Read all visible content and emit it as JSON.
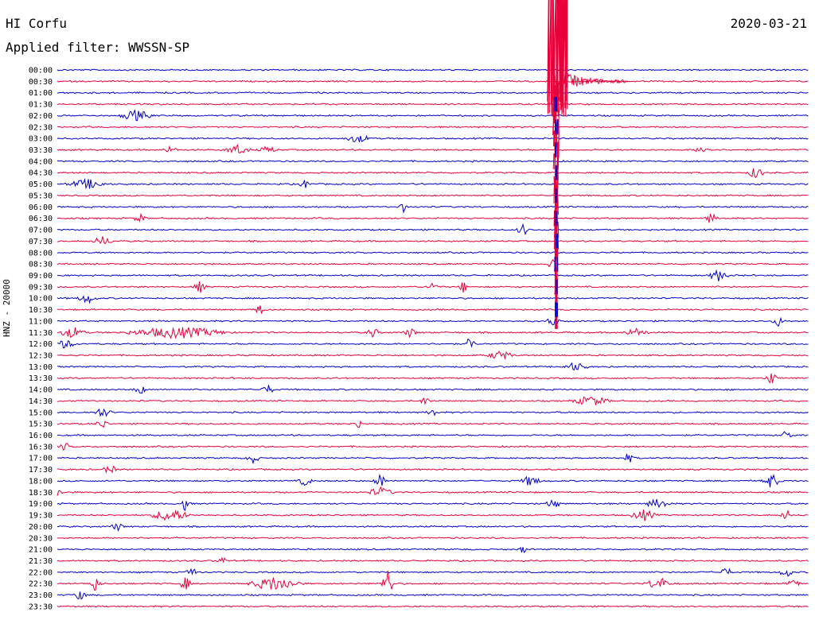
{
  "header": {
    "station": "HI Corfu",
    "filter": "Applied filter: WWSSN-SP",
    "date": "2020-03-21"
  },
  "chart_data": {
    "type": "line",
    "title": "HI Corfu",
    "subtitle": "Applied filter: WWSSN-SP",
    "date": "2020-03-21",
    "ylabel": "HNZ - 20000",
    "row_ticks": [
      "00:00",
      "00:30",
      "01:00",
      "01:30",
      "02:00",
      "02:30",
      "03:00",
      "03:30",
      "04:00",
      "04:30",
      "05:00",
      "05:30",
      "06:00",
      "06:30",
      "07:00",
      "07:30",
      "08:00",
      "08:30",
      "09:00",
      "09:30",
      "10:00",
      "10:30",
      "11:00",
      "11:30",
      "12:00",
      "12:30",
      "13:00",
      "13:30",
      "14:00",
      "14:30",
      "15:00",
      "15:30",
      "16:00",
      "16:30",
      "17:00",
      "17:30",
      "18:00",
      "18:30",
      "19:00",
      "19:30",
      "20:00",
      "20:30",
      "21:00",
      "21:30",
      "22:00",
      "22:30",
      "23:00",
      "23:30"
    ],
    "colors": [
      "#0000cc",
      "#e8003a"
    ],
    "grid": false,
    "events": [
      {
        "row": 4,
        "x": 0.105,
        "amp": 7,
        "width": 0.025
      },
      {
        "row": 6,
        "x": 0.4,
        "amp": 5,
        "width": 0.02
      },
      {
        "row": 7,
        "x": 0.15,
        "amp": 4,
        "width": 0.012
      },
      {
        "row": 7,
        "x": 0.24,
        "amp": 6,
        "width": 0.02
      },
      {
        "row": 7,
        "x": 0.28,
        "amp": 4,
        "width": 0.015
      },
      {
        "row": 7,
        "x": 0.86,
        "amp": 4,
        "width": 0.015
      },
      {
        "row": 9,
        "x": 0.93,
        "amp": 8,
        "width": 0.012
      },
      {
        "row": 10,
        "x": 0.04,
        "amp": 6,
        "width": 0.03
      },
      {
        "row": 10,
        "x": 0.33,
        "amp": 5,
        "width": 0.01
      },
      {
        "row": 12,
        "x": 0.46,
        "amp": 7,
        "width": 0.006
      },
      {
        "row": 13,
        "x": 0.87,
        "amp": 6,
        "width": 0.01
      },
      {
        "row": 13,
        "x": 0.11,
        "amp": 5,
        "width": 0.01
      },
      {
        "row": 14,
        "x": 0.62,
        "amp": 7,
        "width": 0.01
      },
      {
        "row": 15,
        "x": 0.06,
        "amp": 6,
        "width": 0.015
      },
      {
        "row": 17,
        "x": 0.66,
        "amp": 5,
        "width": 0.01
      },
      {
        "row": 18,
        "x": 0.88,
        "amp": 7,
        "width": 0.015
      },
      {
        "row": 19,
        "x": 0.19,
        "amp": 7,
        "width": 0.01
      },
      {
        "row": 19,
        "x": 0.54,
        "amp": 9,
        "width": 0.006
      },
      {
        "row": 19,
        "x": 0.5,
        "amp": 6,
        "width": 0.01
      },
      {
        "row": 20,
        "x": 0.04,
        "amp": 6,
        "width": 0.015
      },
      {
        "row": 21,
        "x": 0.27,
        "amp": 6,
        "width": 0.01
      },
      {
        "row": 22,
        "x": 0.66,
        "amp": 7,
        "width": 0.01
      },
      {
        "row": 22,
        "x": 0.96,
        "amp": 6,
        "width": 0.01
      },
      {
        "row": 23,
        "x": 0.02,
        "amp": 7,
        "width": 0.02
      },
      {
        "row": 23,
        "x": 0.16,
        "amp": 7,
        "width": 0.08
      },
      {
        "row": 23,
        "x": 0.42,
        "amp": 6,
        "width": 0.01
      },
      {
        "row": 23,
        "x": 0.47,
        "amp": 6,
        "width": 0.01
      },
      {
        "row": 23,
        "x": 0.77,
        "amp": 5,
        "width": 0.02
      },
      {
        "row": 24,
        "x": 0.55,
        "amp": 12,
        "width": 0.006
      },
      {
        "row": 24,
        "x": 0.01,
        "amp": 5,
        "width": 0.02
      },
      {
        "row": 25,
        "x": 0.59,
        "amp": 6,
        "width": 0.02
      },
      {
        "row": 26,
        "x": 0.69,
        "amp": 5,
        "width": 0.02
      },
      {
        "row": 27,
        "x": 0.95,
        "amp": 8,
        "width": 0.01
      },
      {
        "row": 28,
        "x": 0.11,
        "amp": 6,
        "width": 0.01
      },
      {
        "row": 28,
        "x": 0.28,
        "amp": 6,
        "width": 0.01
      },
      {
        "row": 29,
        "x": 0.71,
        "amp": 6,
        "width": 0.03
      },
      {
        "row": 29,
        "x": 0.49,
        "amp": 5,
        "width": 0.01
      },
      {
        "row": 30,
        "x": 0.06,
        "amp": 6,
        "width": 0.015
      },
      {
        "row": 30,
        "x": 0.5,
        "amp": 5,
        "width": 0.01
      },
      {
        "row": 31,
        "x": 0.06,
        "amp": 6,
        "width": 0.01
      },
      {
        "row": 31,
        "x": 0.4,
        "amp": 5,
        "width": 0.01
      },
      {
        "row": 32,
        "x": 0.97,
        "amp": 6,
        "width": 0.01
      },
      {
        "row": 33,
        "x": 0.01,
        "amp": 5,
        "width": 0.01
      },
      {
        "row": 34,
        "x": 0.26,
        "amp": 7,
        "width": 0.01
      },
      {
        "row": 34,
        "x": 0.76,
        "amp": 6,
        "width": 0.01
      },
      {
        "row": 35,
        "x": 0.07,
        "amp": 6,
        "width": 0.01
      },
      {
        "row": 36,
        "x": 0.33,
        "amp": 7,
        "width": 0.01
      },
      {
        "row": 36,
        "x": 0.43,
        "amp": 9,
        "width": 0.01
      },
      {
        "row": 36,
        "x": 0.63,
        "amp": 7,
        "width": 0.015
      },
      {
        "row": 36,
        "x": 0.95,
        "amp": 9,
        "width": 0.015
      },
      {
        "row": 37,
        "x": 0.0,
        "amp": 5,
        "width": 0.01
      },
      {
        "row": 37,
        "x": 0.43,
        "amp": 6,
        "width": 0.02
      },
      {
        "row": 38,
        "x": 0.17,
        "amp": 8,
        "width": 0.01
      },
      {
        "row": 38,
        "x": 0.66,
        "amp": 8,
        "width": 0.01
      },
      {
        "row": 38,
        "x": 0.8,
        "amp": 6,
        "width": 0.02
      },
      {
        "row": 39,
        "x": 0.15,
        "amp": 8,
        "width": 0.03
      },
      {
        "row": 39,
        "x": 0.78,
        "amp": 7,
        "width": 0.02
      },
      {
        "row": 39,
        "x": 0.97,
        "amp": 6,
        "width": 0.01
      },
      {
        "row": 40,
        "x": 0.08,
        "amp": 5,
        "width": 0.01
      },
      {
        "row": 42,
        "x": 0.62,
        "amp": 6,
        "width": 0.005
      },
      {
        "row": 43,
        "x": 0.22,
        "amp": 4,
        "width": 0.01
      },
      {
        "row": 44,
        "x": 0.18,
        "amp": 5,
        "width": 0.01
      },
      {
        "row": 44,
        "x": 0.89,
        "amp": 6,
        "width": 0.01
      },
      {
        "row": 44,
        "x": 0.97,
        "amp": 7,
        "width": 0.01
      },
      {
        "row": 45,
        "x": 0.05,
        "amp": 9,
        "width": 0.01
      },
      {
        "row": 45,
        "x": 0.17,
        "amp": 8,
        "width": 0.01
      },
      {
        "row": 45,
        "x": 0.29,
        "amp": 9,
        "width": 0.04
      },
      {
        "row": 45,
        "x": 0.44,
        "amp": 18,
        "width": 0.01
      },
      {
        "row": 45,
        "x": 0.8,
        "amp": 8,
        "width": 0.02
      },
      {
        "row": 45,
        "x": 0.98,
        "amp": 6,
        "width": 0.01
      },
      {
        "row": 46,
        "x": 0.03,
        "amp": 6,
        "width": 0.01
      }
    ],
    "main_event": {
      "row_start": 0,
      "row_end": 22,
      "x": 0.662,
      "peak_row": 1,
      "coda_end_x": 0.76
    }
  }
}
